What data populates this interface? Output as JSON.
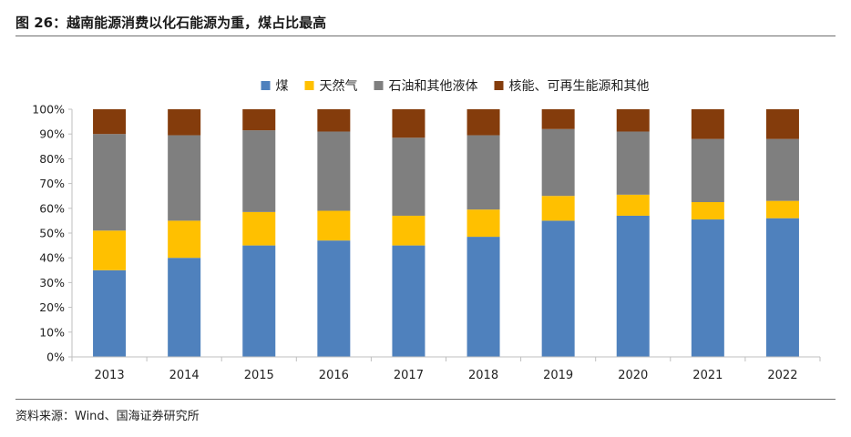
{
  "title": "图 26：越南能源消费以化石能源为重，煤占比最高",
  "source": "资料来源：Wind、国海证券研究所",
  "colors": {
    "coal": "#4f81bd",
    "gas": "#ffc000",
    "oil": "#7f7f7f",
    "nuclear_renewable": "#843c0c",
    "axis": "#bfbfbf"
  },
  "chart_data": {
    "type": "bar",
    "stacked": true,
    "categories": [
      "2013",
      "2014",
      "2015",
      "2016",
      "2017",
      "2018",
      "2019",
      "2020",
      "2021",
      "2022"
    ],
    "ylim": [
      0,
      100
    ],
    "yticks": [
      "0%",
      "10%",
      "20%",
      "30%",
      "40%",
      "50%",
      "60%",
      "70%",
      "80%",
      "90%",
      "100%"
    ],
    "legend_position": "top",
    "grid": false,
    "series": [
      {
        "name": "煤",
        "color": "#4f81bd",
        "values": [
          35,
          40,
          45,
          47,
          45,
          48.5,
          55,
          57,
          55.5,
          56
        ]
      },
      {
        "name": "天然气",
        "color": "#ffc000",
        "values": [
          16,
          15,
          13.5,
          12,
          12,
          11,
          10,
          8.5,
          7,
          7
        ]
      },
      {
        "name": "石油和其他液体",
        "color": "#7f7f7f",
        "values": [
          39,
          34.5,
          33,
          32,
          31.5,
          30,
          27,
          25.5,
          25.5,
          25
        ]
      },
      {
        "name": "核能、可再生能源和其他",
        "color": "#843c0c",
        "values": [
          10,
          10.5,
          8.5,
          9,
          11.5,
          10.5,
          8,
          9,
          12,
          12
        ]
      }
    ]
  }
}
